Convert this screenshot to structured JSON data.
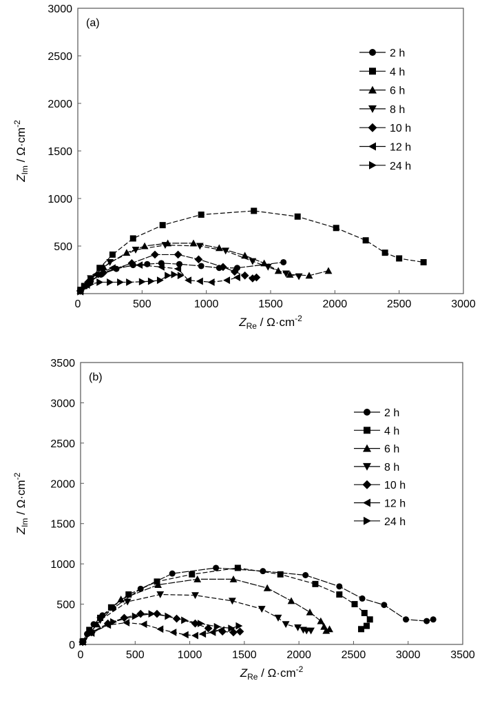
{
  "chart_data": [
    {
      "type": "scatter",
      "panel_label": "(a)",
      "xlabel_main": "Z",
      "xlabel_sub": "Re",
      "xlabel_unit": " / Ω·cm",
      "xlabel_sup": "-2",
      "ylabel_main": "Z",
      "ylabel_sub": "Im",
      "ylabel_unit": " / Ω·cm",
      "ylabel_sup": "-2",
      "xlim": [
        0,
        3000
      ],
      "ylim": [
        0,
        3000
      ],
      "xticks": [
        0,
        500,
        1000,
        1500,
        2000,
        2500,
        3000
      ],
      "yticks": [
        500,
        1000,
        1500,
        2000,
        2500,
        3000
      ],
      "ytick_labels_include_zero": false,
      "legend_position": "top-right",
      "series": [
        {
          "name": "2 h",
          "marker": "circle",
          "points": [
            [
              20,
              30
            ],
            [
              60,
              80
            ],
            [
              100,
              130
            ],
            [
              180,
              200
            ],
            [
              300,
              260
            ],
            [
              430,
              300
            ],
            [
              540,
              310
            ],
            [
              650,
              320
            ],
            [
              790,
              310
            ],
            [
              960,
              290
            ],
            [
              1100,
              270
            ],
            [
              1240,
              270
            ],
            [
              1600,
              330
            ]
          ]
        },
        {
          "name": "4 h",
          "marker": "square",
          "points": [
            [
              20,
              40
            ],
            [
              50,
              80
            ],
            [
              100,
              150
            ],
            [
              170,
              270
            ],
            [
              270,
              410
            ],
            [
              430,
              580
            ],
            [
              660,
              720
            ],
            [
              960,
              830
            ],
            [
              1370,
              870
            ],
            [
              1710,
              810
            ],
            [
              2010,
              690
            ],
            [
              2240,
              560
            ],
            [
              2390,
              430
            ],
            [
              2500,
              370
            ],
            [
              2690,
              330
            ]
          ]
        },
        {
          "name": "6 h",
          "marker": "triangle-up",
          "points": [
            [
              20,
              30
            ],
            [
              80,
              120
            ],
            [
              200,
              280
            ],
            [
              380,
              430
            ],
            [
              520,
              500
            ],
            [
              700,
              530
            ],
            [
              900,
              530
            ],
            [
              1100,
              480
            ],
            [
              1300,
              400
            ],
            [
              1450,
              320
            ],
            [
              1560,
              240
            ],
            [
              1650,
              200
            ],
            [
              1800,
              190
            ],
            [
              1950,
              240
            ]
          ]
        },
        {
          "name": "8 h",
          "marker": "triangle-down",
          "points": [
            [
              30,
              40
            ],
            [
              100,
              160
            ],
            [
              250,
              330
            ],
            [
              450,
              460
            ],
            [
              680,
              510
            ],
            [
              950,
              500
            ],
            [
              1150,
              450
            ],
            [
              1360,
              340
            ],
            [
              1480,
              280
            ],
            [
              1620,
              210
            ],
            [
              1720,
              180
            ]
          ]
        },
        {
          "name": "10 h",
          "marker": "diamond",
          "points": [
            [
              20,
              30
            ],
            [
              80,
              120
            ],
            [
              200,
              220
            ],
            [
              420,
              320
            ],
            [
              600,
              410
            ],
            [
              780,
              410
            ],
            [
              940,
              360
            ],
            [
              1130,
              280
            ],
            [
              1220,
              230
            ],
            [
              1300,
              190
            ],
            [
              1360,
              160
            ],
            [
              1390,
              170
            ]
          ]
        },
        {
          "name": "12 h",
          "marker": "triangle-left",
          "points": [
            [
              20,
              20
            ],
            [
              70,
              90
            ],
            [
              140,
              200
            ],
            [
              270,
              270
            ],
            [
              480,
              300
            ],
            [
              650,
              280
            ],
            [
              780,
              260
            ],
            [
              860,
              140
            ],
            [
              950,
              130
            ],
            [
              1040,
              120
            ],
            [
              1160,
              140
            ],
            [
              1240,
              170
            ]
          ]
        },
        {
          "name": "24 h",
          "marker": "triangle-right",
          "points": [
            [
              20,
              20
            ],
            [
              50,
              60
            ],
            [
              100,
              100
            ],
            [
              170,
              120
            ],
            [
              250,
              120
            ],
            [
              330,
              120
            ],
            [
              400,
              120
            ],
            [
              500,
              125
            ],
            [
              570,
              130
            ],
            [
              640,
              140
            ],
            [
              700,
              190
            ],
            [
              750,
              200
            ],
            [
              800,
              190
            ]
          ]
        }
      ]
    },
    {
      "type": "scatter",
      "panel_label": "(b)",
      "xlabel_main": "Z",
      "xlabel_sub": "Re",
      "xlabel_unit": " / Ω·cm",
      "xlabel_sup": "-2",
      "ylabel_main": "Z",
      "ylabel_sub": "Im",
      "ylabel_unit": " / Ω·cm",
      "ylabel_sup": "-2",
      "xlim": [
        0,
        3500
      ],
      "ylim": [
        0,
        3500
      ],
      "xticks": [
        0,
        500,
        1000,
        1500,
        2000,
        2500,
        3000,
        3500
      ],
      "yticks": [
        0,
        500,
        1000,
        1500,
        2000,
        2500,
        3000,
        3500
      ],
      "ytick_labels_include_zero": true,
      "legend_position": "top-right",
      "series": [
        {
          "name": "2 h",
          "marker": "circle",
          "points": [
            [
              20,
              40
            ],
            [
              60,
              130
            ],
            [
              120,
              250
            ],
            [
              200,
              360
            ],
            [
              300,
              450
            ],
            [
              550,
              690
            ],
            [
              840,
              880
            ],
            [
              1240,
              950
            ],
            [
              1670,
              910
            ],
            [
              2060,
              860
            ],
            [
              2370,
              720
            ],
            [
              2580,
              570
            ],
            [
              2780,
              490
            ],
            [
              2980,
              310
            ],
            [
              3170,
              290
            ],
            [
              3230,
              310
            ]
          ]
        },
        {
          "name": "4 h",
          "marker": "square",
          "points": [
            [
              20,
              30
            ],
            [
              80,
              180
            ],
            [
              180,
              330
            ],
            [
              280,
              460
            ],
            [
              440,
              620
            ],
            [
              700,
              780
            ],
            [
              1020,
              870
            ],
            [
              1440,
              950
            ],
            [
              1830,
              870
            ],
            [
              2150,
              750
            ],
            [
              2370,
              620
            ],
            [
              2510,
              500
            ],
            [
              2600,
              390
            ],
            [
              2650,
              310
            ],
            [
              2620,
              230
            ],
            [
              2570,
              190
            ]
          ]
        },
        {
          "name": "6 h",
          "marker": "triangle-up",
          "points": [
            [
              20,
              30
            ],
            [
              150,
              250
            ],
            [
              370,
              560
            ],
            [
              710,
              740
            ],
            [
              1070,
              810
            ],
            [
              1400,
              810
            ],
            [
              1710,
              700
            ],
            [
              1930,
              540
            ],
            [
              2100,
              400
            ],
            [
              2200,
              290
            ],
            [
              2230,
              220
            ],
            [
              2250,
              170
            ],
            [
              2280,
              190
            ]
          ]
        },
        {
          "name": "8 h",
          "marker": "triangle-down",
          "points": [
            [
              30,
              40
            ],
            [
              180,
              300
            ],
            [
              430,
              530
            ],
            [
              730,
              620
            ],
            [
              1050,
              610
            ],
            [
              1390,
              540
            ],
            [
              1660,
              440
            ],
            [
              1810,
              330
            ],
            [
              1880,
              250
            ],
            [
              1990,
              210
            ],
            [
              2040,
              180
            ],
            [
              2070,
              170
            ],
            [
              2110,
              170
            ]
          ]
        },
        {
          "name": "10 h",
          "marker": "diamond",
          "points": [
            [
              20,
              30
            ],
            [
              100,
              150
            ],
            [
              250,
              260
            ],
            [
              400,
              330
            ],
            [
              550,
              380
            ],
            [
              700,
              380
            ],
            [
              880,
              320
            ],
            [
              1050,
              260
            ],
            [
              1170,
              200
            ],
            [
              1300,
              160
            ],
            [
              1400,
              150
            ],
            [
              1460,
              160
            ]
          ]
        },
        {
          "name": "12 h",
          "marker": "triangle-left",
          "points": [
            [
              20,
              30
            ],
            [
              100,
              140
            ],
            [
              250,
              240
            ],
            [
              420,
              270
            ],
            [
              580,
              250
            ],
            [
              730,
              190
            ],
            [
              850,
              150
            ],
            [
              960,
              120
            ],
            [
              1050,
              110
            ],
            [
              1120,
              130
            ],
            [
              1210,
              150
            ],
            [
              1290,
              180
            ]
          ]
        },
        {
          "name": "24 h",
          "marker": "triangle-right",
          "points": [
            [
              20,
              30
            ],
            [
              100,
              140
            ],
            [
              300,
              280
            ],
            [
              500,
              350
            ],
            [
              650,
              380
            ],
            [
              800,
              350
            ],
            [
              950,
              300
            ],
            [
              1100,
              260
            ],
            [
              1250,
              220
            ],
            [
              1380,
              200
            ],
            [
              1450,
              230
            ]
          ]
        }
      ]
    }
  ]
}
